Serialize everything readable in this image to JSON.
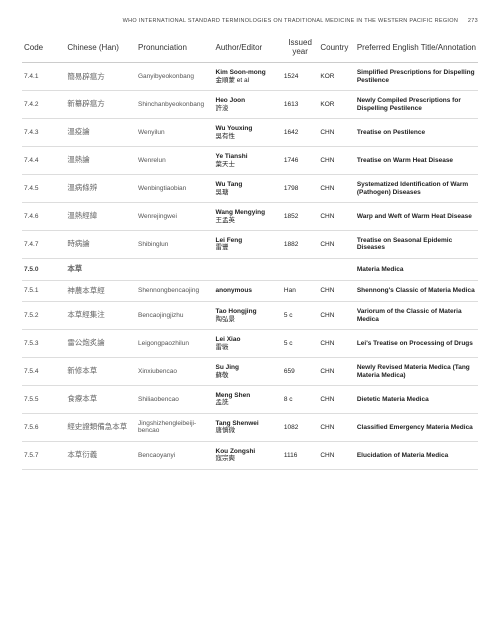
{
  "header": {
    "running_title": "WHO INTERNATIONAL STANDARD TERMINOLOGIES ON TRADITIONAL MEDICINE IN THE WESTERN PACIFIC REGION",
    "page_number": "273"
  },
  "columns": {
    "code": "Code",
    "han": "Chinese (Han)",
    "pron": "Pronunciation",
    "auth": "Author/Editor",
    "year": "Issued year",
    "ctry": "Country",
    "title": "Preferred English Title/Annotation"
  },
  "rows": [
    {
      "code": "7.4.1",
      "han": "簡易辟瘟方",
      "pron": "Ganyibyeokonbang",
      "auth": "Kim Soon-mong",
      "auth_sub": "金順蒙 et al",
      "year": "1524",
      "ctry": "KOR",
      "title": "Simplified Prescriptions for Dispelling Pestilence"
    },
    {
      "code": "7.4.2",
      "han": "新纂辟瘟方",
      "pron": "Shinchanbyeokonbang",
      "auth": "Heo Joon",
      "auth_sub": "許浚",
      "year": "1613",
      "ctry": "KOR",
      "title": "Newly Compiled Prescriptions for Dispelling Pestilence"
    },
    {
      "code": "7.4.3",
      "han": "溫疫論",
      "pron": "Wenyilun",
      "auth": "Wu Youxing",
      "auth_sub": "吳有性",
      "year": "1642",
      "ctry": "CHN",
      "title": "Treatise on Pestilence"
    },
    {
      "code": "7.4.4",
      "han": "溫熱論",
      "pron": "Wenrelun",
      "auth": "Ye Tianshi",
      "auth_sub": "葉天士",
      "year": "1746",
      "ctry": "CHN",
      "title": "Treatise on Warm Heat Disease"
    },
    {
      "code": "7.4.5",
      "han": "溫病條辨",
      "pron": "Wenbingtiaobian",
      "auth": "Wu Tang",
      "auth_sub": "吳瑭",
      "year": "1798",
      "ctry": "CHN",
      "title": "Systematized Identification of Warm (Pathogen) Diseases"
    },
    {
      "code": "7.4.6",
      "han": "溫熱經緯",
      "pron": "Wenrejingwei",
      "auth": "Wang Mengying",
      "auth_sub": "王孟英",
      "year": "1852",
      "ctry": "CHN",
      "title": "Warp and Weft of Warm Heat Disease"
    },
    {
      "code": "7.4.7",
      "han": "時病論",
      "pron": "Shibinglun",
      "auth": "Lei Feng",
      "auth_sub": "雷豐",
      "year": "1882",
      "ctry": "CHN",
      "title": "Treatise on Seasonal Epidemic Diseases"
    },
    {
      "section": true,
      "code": "7.5.0",
      "han": "本草",
      "pron": "",
      "auth": "",
      "auth_sub": "",
      "year": "",
      "ctry": "",
      "title": "Materia Medica"
    },
    {
      "code": "7.5.1",
      "han": "神農本草經",
      "pron": "Shennongbencaojing",
      "auth": "anonymous",
      "auth_sub": "",
      "year": "Han",
      "ctry": "CHN",
      "title": "Shennong's Classic of Materia Medica"
    },
    {
      "code": "7.5.2",
      "han": "本草經集注",
      "pron": "Bencaojingjizhu",
      "auth": "Tao Hongjing",
      "auth_sub": "陶弘景",
      "year": "5 c",
      "ctry": "CHN",
      "title": "Variorum of  the Classic of Materia Medica"
    },
    {
      "code": "7.5.3",
      "han": "雷公炮炙論",
      "pron": "Leigongpaozhilun",
      "auth": "Lei Xiao",
      "auth_sub": "雷斅",
      "year": "5 c",
      "ctry": "CHN",
      "title": "Lei's Treatise on Processing of Drugs"
    },
    {
      "code": "7.5.4",
      "han": "新修本草",
      "pron": "Xinxiubencao",
      "auth": "Su Jing",
      "auth_sub": "蘇敬",
      "year": "659",
      "ctry": "CHN",
      "title": "Newly Revised Materia Medica (Tang Materia Medica)"
    },
    {
      "code": "7.5.5",
      "han": "食療本草",
      "pron": "Shiliaobencao",
      "auth": "Meng Shen",
      "auth_sub": "孟詵",
      "year": "8 c",
      "ctry": "CHN",
      "title": "Dietetic Materia Medica"
    },
    {
      "code": "7.5.6",
      "han": "經史證類備急本草",
      "pron": "Jingshizhengleibeiji-bencao",
      "auth": "Tang Shenwei",
      "auth_sub": "唐慎微",
      "year": "1082",
      "ctry": "CHN",
      "title": "Classified Emergency Materia Medica"
    },
    {
      "code": "7.5.7",
      "han": "本草衍義",
      "pron": "Bencaoyanyi",
      "auth": "Kou Zongshi",
      "auth_sub": "寇宗奭",
      "year": "1116",
      "ctry": "CHN",
      "title": "Elucidation of Materia Medica"
    }
  ]
}
